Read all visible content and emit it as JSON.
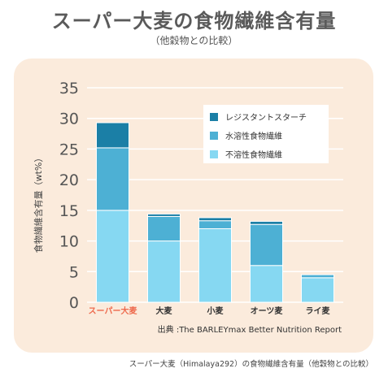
{
  "header": {
    "title": "スーパー大麦の食物繊維含有量",
    "subtitle": "（他穀物との比較）"
  },
  "footer": {
    "caption": "スーパー大麦（Himalaya292）の食物繊維含有量（他穀物との比較）"
  },
  "chart_data": {
    "type": "bar",
    "stacked": true,
    "categories": [
      "スーパー大麦",
      "大麦",
      "小麦",
      "オーツ麦",
      "ライ麦"
    ],
    "highlight_category": "スーパー大麦",
    "series": [
      {
        "name": "不溶性食物繊維",
        "values": [
          15,
          10,
          12,
          6,
          4
        ],
        "color": "#86d8f2"
      },
      {
        "name": "水溶性食物繊維",
        "values": [
          10.2,
          4,
          1.3,
          6.7,
          0.5
        ],
        "color": "#4db0d4"
      },
      {
        "name": "レジスタントスターチ",
        "values": [
          4.1,
          0.4,
          0.5,
          0.5,
          0
        ],
        "color": "#1b7fa6"
      }
    ],
    "ylabel": "食物繊維含有量（wt%）",
    "ylim": [
      0,
      35
    ],
    "yticks": [
      0,
      5,
      10,
      15,
      20,
      25,
      30,
      35
    ],
    "grid": true,
    "legend_position": "top-right",
    "source": "出典 :The BARLEYmax Better Nutrition Report",
    "colors": {
      "highlight_label": "#ee6a4d",
      "axis_text": "#555555",
      "grid": "#ffffff"
    }
  }
}
